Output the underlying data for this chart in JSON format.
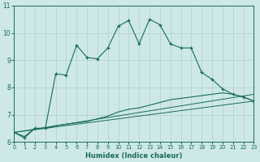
{
  "xlabel": "Humidex (Indice chaleur)",
  "background_color": "#cde8e5",
  "grid_color": "#b0d0ce",
  "line_color": "#1a6b5e",
  "xlim": [
    0,
    23
  ],
  "ylim": [
    6,
    11
  ],
  "yticks": [
    6,
    7,
    8,
    9,
    10,
    11
  ],
  "xticks": [
    0,
    1,
    2,
    3,
    4,
    5,
    6,
    7,
    8,
    9,
    10,
    11,
    12,
    13,
    14,
    15,
    16,
    17,
    18,
    19,
    20,
    21,
    22,
    23
  ],
  "main_line_x": [
    0,
    1,
    2,
    3,
    4,
    5,
    6,
    7,
    8,
    9,
    10,
    11,
    12,
    13,
    14,
    15,
    16,
    17,
    18,
    19,
    20,
    21,
    22,
    23
  ],
  "main_line_y": [
    6.35,
    6.15,
    6.5,
    6.5,
    8.5,
    8.45,
    9.55,
    9.1,
    9.05,
    9.45,
    10.25,
    10.45,
    9.6,
    10.5,
    10.3,
    9.6,
    9.45,
    9.45,
    8.55,
    8.3,
    7.95,
    7.75,
    7.65,
    7.5
  ],
  "line2_x": [
    0,
    1,
    2,
    3,
    4,
    5,
    6,
    7,
    8,
    9,
    10,
    11,
    12,
    13,
    14,
    15,
    16,
    17,
    18,
    19,
    20,
    21,
    22,
    23
  ],
  "line2_y": [
    6.35,
    6.2,
    6.5,
    6.5,
    6.6,
    6.65,
    6.7,
    6.75,
    6.85,
    6.95,
    7.1,
    7.2,
    7.25,
    7.35,
    7.45,
    7.55,
    7.6,
    7.65,
    7.7,
    7.75,
    7.8,
    7.75,
    7.65,
    7.5
  ],
  "line3_x": [
    0,
    23
  ],
  "line3_y": [
    6.35,
    7.5
  ],
  "line4_x": [
    0,
    23
  ],
  "line4_y": [
    6.35,
    7.75
  ]
}
